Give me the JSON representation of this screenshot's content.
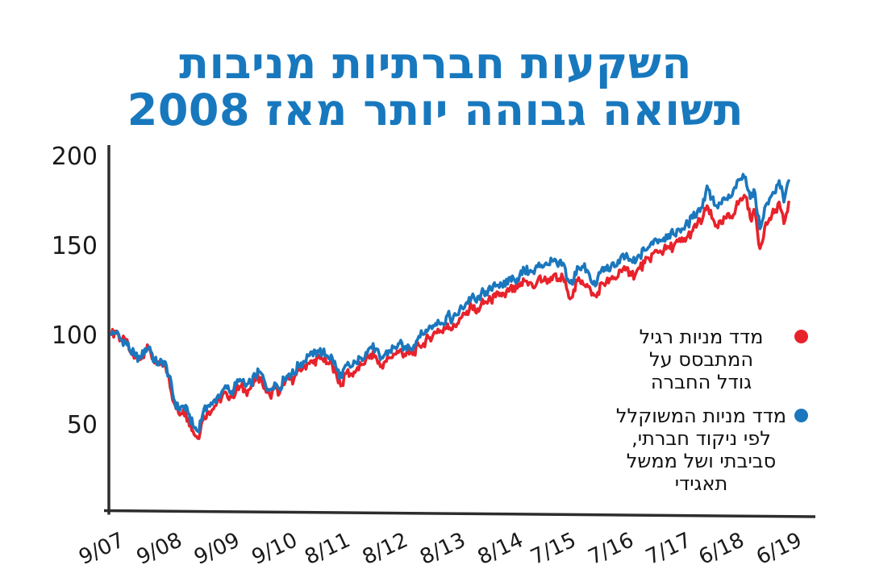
{
  "title": {
    "line1": "השקעות חברתיות מניבות",
    "line2": "תשואה גבוהה יותר מאז 2008"
  },
  "colors": {
    "title_blue": "#1878be",
    "red_series": "#e8222b",
    "blue_series": "#1b77bd",
    "axis": "#2d2d2d",
    "tick_text": "#1a1a1a"
  },
  "legend": {
    "items": [
      {
        "key": "regular_index",
        "color": "#e8222b",
        "lines": [
          "מדד מניות רגיל",
          "המתבסס על",
          "גודל החברה"
        ]
      },
      {
        "key": "esg_index",
        "color": "#1b77bd",
        "lines": [
          "מדד מניות המשוקלל",
          "לפי ניקוד חברתי,",
          "סביבתי ושל ממשל",
          "תאגידי"
        ]
      }
    ]
  },
  "chart_data": {
    "type": "line",
    "title": "השקעות חברתיות מניבות תשואה גבוהה יותר מאז 2008",
    "x_frequency": "monthly",
    "x_start": "9/07",
    "x_end": "6/19",
    "x_tick_labels": [
      "9/07",
      "9/08",
      "9/09",
      "9/10",
      "8/11",
      "8/12",
      "8/13",
      "8/14",
      "7/15",
      "7/16",
      "7/17",
      "6/18",
      "6/19"
    ],
    "x_tick_month_index": [
      0,
      12,
      24,
      36,
      47,
      59,
      71,
      83,
      94,
      106,
      118,
      129,
      141
    ],
    "y_ticks": [
      200,
      150,
      100,
      50
    ],
    "ylim": [
      0,
      205
    ],
    "grid": false,
    "legend_position": "right-inside",
    "series": [
      {
        "key": "regular-index",
        "name": "מדד מניות רגיל המתבסס על גודל החברה",
        "color": "#e8222b",
        "values": [
          100,
          102,
          97,
          96,
          90,
          87,
          86,
          91,
          92,
          84,
          83,
          84,
          76,
          62,
          56,
          58,
          53,
          46,
          42,
          52,
          57,
          58,
          62,
          65,
          67,
          65,
          69,
          71,
          68,
          70,
          74,
          76,
          70,
          66,
          70,
          67,
          72,
          75,
          75,
          80,
          82,
          84,
          84,
          87,
          86,
          84,
          83,
          76,
          72,
          79,
          78,
          80,
          83,
          86,
          89,
          88,
          82,
          85,
          87,
          89,
          91,
          89,
          89,
          90,
          94,
          95,
          98,
          100,
          103,
          101,
          106,
          103,
          106,
          110,
          113,
          116,
          112,
          117,
          118,
          119,
          121,
          123,
          121,
          126,
          124,
          127,
          130,
          129,
          126,
          132,
          130,
          131,
          133,
          130,
          132,
          124,
          121,
          130,
          130,
          128,
          122,
          121,
          129,
          129,
          131,
          131,
          136,
          136,
          135,
          133,
          137,
          140,
          142,
          146,
          146,
          147,
          149,
          149,
          152,
          152,
          155,
          158,
          162,
          164,
          172,
          165,
          161,
          162,
          165,
          166,
          171,
          176,
          177,
          165,
          168,
          148,
          160,
          165,
          168,
          174,
          162,
          174
        ]
      },
      {
        "key": "esg-index",
        "name": "מדד מניות המשוקלל לפי ניקוד חברתי, סביבתי ושל ממשל תאגידי",
        "color": "#1b77bd",
        "values": [
          100,
          101,
          97,
          96,
          91,
          88,
          87,
          92,
          93,
          85,
          84,
          85,
          77,
          64,
          58,
          60,
          56,
          49,
          46,
          55,
          60,
          61,
          65,
          68,
          70,
          68,
          72,
          74,
          71,
          73,
          77,
          79,
          73,
          69,
          73,
          70,
          75,
          78,
          78,
          83,
          85,
          88,
          88,
          91,
          90,
          88,
          87,
          80,
          76,
          83,
          82,
          84,
          87,
          90,
          93,
          92,
          86,
          89,
          91,
          93,
          95,
          93,
          93,
          94,
          99,
          100,
          103,
          105,
          108,
          106,
          111,
          108,
          111,
          115,
          118,
          121,
          118,
          123,
          124,
          125,
          127,
          129,
          127,
          132,
          130,
          133,
          136,
          135,
          134,
          140,
          138,
          139,
          141,
          138,
          140,
          131,
          128,
          138,
          138,
          136,
          129,
          128,
          136,
          136,
          138,
          138,
          143,
          143,
          142,
          140,
          144,
          147,
          149,
          153,
          153,
          154,
          156,
          156,
          159,
          159,
          162,
          165,
          169,
          171,
          183,
          176,
          172,
          173,
          176,
          177,
          182,
          187,
          188,
          176,
          179,
          159,
          171,
          176,
          179,
          186,
          174,
          186
        ]
      }
    ]
  }
}
